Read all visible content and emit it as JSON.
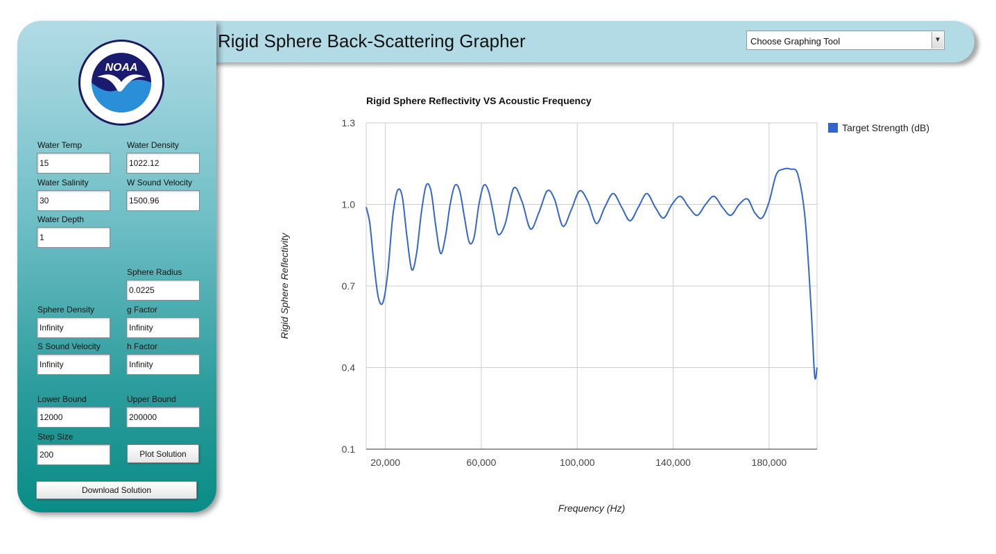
{
  "header": {
    "title": "Rigid Sphere Back-Scattering Grapher",
    "tool_select": {
      "value": "Choose Graphing Tool"
    }
  },
  "sidebar": {
    "logo_text": "NOAA",
    "fields": {
      "water_temp": {
        "label": "Water Temp",
        "value": "15"
      },
      "water_density": {
        "label": "Water Density",
        "value": "1022.12"
      },
      "water_salinity": {
        "label": "Water Salinity",
        "value": "30"
      },
      "w_sound_velocity": {
        "label": "W Sound Velocity",
        "value": "1500.96"
      },
      "water_depth": {
        "label": "Water Depth",
        "value": "1"
      },
      "sphere_radius": {
        "label": "Sphere Radius",
        "value": "0.0225"
      },
      "sphere_density": {
        "label": "Sphere Density",
        "value": "Infinity"
      },
      "g_factor": {
        "label": "g Factor",
        "value": "Infinity"
      },
      "s_sound_velocity": {
        "label": "S Sound Velocity",
        "value": "Infinity"
      },
      "h_factor": {
        "label": "h Factor",
        "value": "Infinity"
      },
      "lower_bound": {
        "label": "Lower Bound",
        "value": "12000"
      },
      "upper_bound": {
        "label": "Upper Bound",
        "value": "200000"
      },
      "step_size": {
        "label": "Step Size",
        "value": "200"
      }
    },
    "plot_button": "Plot Solution",
    "download_button": "Download Solution"
  },
  "chart_data": {
    "type": "line",
    "title": "Rigid Sphere Reflectivity VS Acoustic Frequency",
    "xlabel": "Frequency (Hz)",
    "ylabel": "Rigid Sphere Reflectivity",
    "xlim": [
      12000,
      200000
    ],
    "ylim": [
      0.1,
      1.3
    ],
    "xticks": [
      20000,
      60000,
      100000,
      140000,
      180000
    ],
    "xtick_labels": [
      "20,000",
      "60,000",
      "100,000",
      "140,000",
      "180,000"
    ],
    "yticks": [
      0.1,
      0.4,
      0.7,
      1.0,
      1.3
    ],
    "ytick_labels": [
      "0.1",
      "0.4",
      "0.7",
      "1.0",
      "1.3"
    ],
    "grid": true,
    "legend_position": "right",
    "series": [
      {
        "name": "Target Strength (dB)",
        "color": "#3366cc",
        "x": [
          12000,
          13500,
          15000,
          17000,
          19000,
          21000,
          23000,
          25000,
          27000,
          29000,
          31000,
          33000,
          35000,
          37000,
          39000,
          41000,
          43000,
          45000,
          47000,
          49000,
          51000,
          53000,
          55000,
          57000,
          59000,
          61000,
          63000,
          65000,
          67000,
          70000,
          73500,
          77000,
          80500,
          84000,
          87500,
          90500,
          94000,
          97500,
          101000,
          104500,
          108000,
          111500,
          115000,
          118500,
          122000,
          125500,
          129000,
          132500,
          136000,
          139500,
          143000,
          146500,
          150000,
          153500,
          157000,
          160500,
          164000,
          167500,
          171000,
          174000,
          177000,
          180000,
          183000,
          186000,
          189000,
          192000,
          195000,
          197500,
          199000,
          200000
        ],
        "y": [
          0.99,
          0.93,
          0.8,
          0.66,
          0.64,
          0.75,
          0.95,
          1.05,
          1.03,
          0.88,
          0.76,
          0.82,
          0.97,
          1.07,
          1.05,
          0.92,
          0.82,
          0.88,
          1.0,
          1.07,
          1.05,
          0.95,
          0.86,
          0.88,
          1.0,
          1.07,
          1.05,
          0.97,
          0.89,
          0.93,
          1.06,
          1.01,
          0.91,
          0.97,
          1.05,
          1.02,
          0.92,
          0.98,
          1.05,
          1.01,
          0.93,
          0.99,
          1.04,
          0.99,
          0.94,
          0.99,
          1.04,
          0.99,
          0.95,
          1.0,
          1.03,
          0.99,
          0.96,
          1.0,
          1.03,
          0.99,
          0.96,
          1.0,
          1.02,
          0.97,
          0.95,
          1.01,
          1.11,
          1.13,
          1.13,
          1.11,
          0.95,
          0.62,
          0.37,
          0.4
        ]
      }
    ]
  }
}
